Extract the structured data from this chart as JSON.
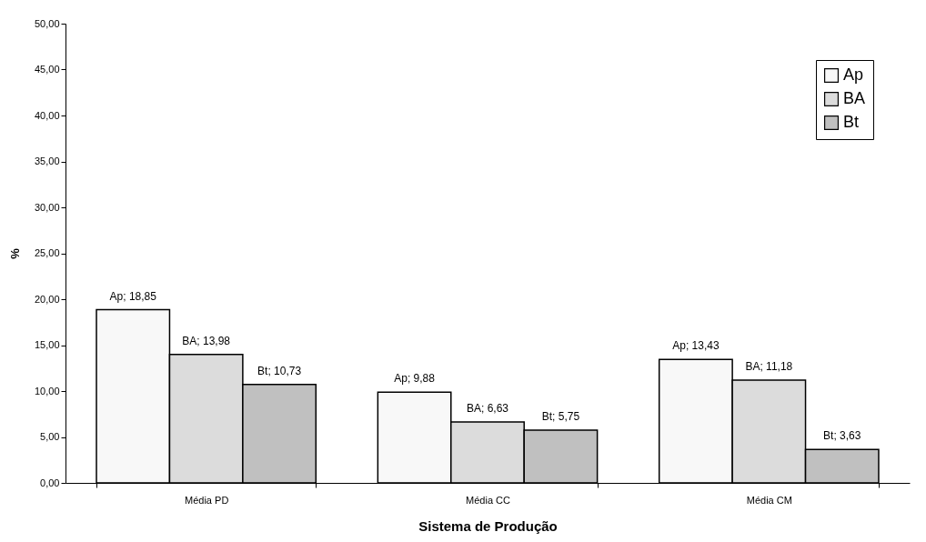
{
  "chart_data": {
    "type": "bar",
    "xlabel": "Sistema de Produção",
    "ylabel": "%",
    "categories": [
      "Média  PD",
      "Média  CC",
      "Média  CM"
    ],
    "series": [
      {
        "name": "Ap",
        "color": "#f8f8f8",
        "values": [
          18.85,
          9.88,
          13.43
        ],
        "value_labels": [
          "Ap; 18,85",
          "Ap; 9,88",
          "Ap; 13,43"
        ]
      },
      {
        "name": "BA",
        "color": "#dcdcdc",
        "values": [
          13.98,
          6.63,
          11.18
        ],
        "value_labels": [
          "BA; 13,98",
          "BA; 6,63",
          "BA; 11,18"
        ]
      },
      {
        "name": "Bt",
        "color": "#c0c0c0",
        "values": [
          10.73,
          5.75,
          3.63
        ],
        "value_labels": [
          "Bt; 10,73",
          "Bt; 5,75",
          "Bt; 3,63"
        ]
      }
    ],
    "ylim": [
      0,
      50
    ],
    "yticks": [
      {
        "value": 0,
        "label": "0,00"
      },
      {
        "value": 5,
        "label": "5,00"
      },
      {
        "value": 10,
        "label": "10,00"
      },
      {
        "value": 15,
        "label": "15,00"
      },
      {
        "value": 20,
        "label": "20,00"
      },
      {
        "value": 25,
        "label": "25,00"
      },
      {
        "value": 30,
        "label": "30,00"
      },
      {
        "value": 35,
        "label": "35,00"
      },
      {
        "value": 40,
        "label": "40,00"
      },
      {
        "value": 45,
        "label": "45,00"
      },
      {
        "value": 50,
        "label": "50,00"
      }
    ],
    "grid": false,
    "legend": "top right"
  }
}
